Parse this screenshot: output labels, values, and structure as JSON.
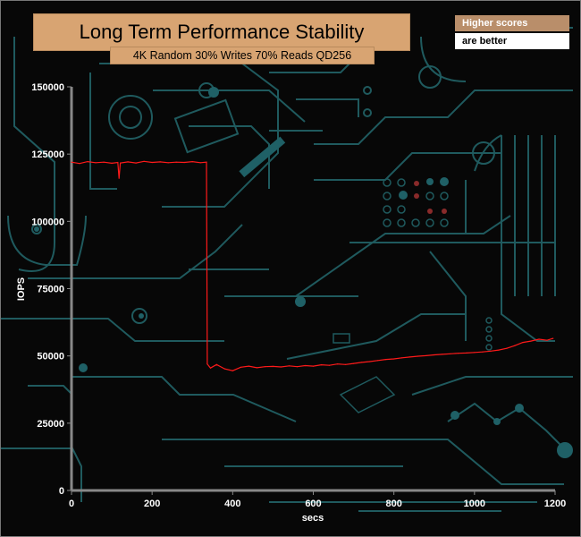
{
  "chart_data": {
    "type": "line",
    "title": "Long Term Performance Stability",
    "subtitle": "4K Random 30% Writes 70% Reads QD256",
    "xlabel": "secs",
    "ylabel": "IOPS",
    "xlim": [
      0,
      1200
    ],
    "ylim": [
      0,
      150000
    ],
    "x_ticks": [
      "0",
      "200",
      "400",
      "600",
      "800",
      "1000",
      "1200"
    ],
    "y_ticks": [
      "0",
      "25000",
      "50000",
      "75000",
      "100000",
      "125000",
      "150000"
    ],
    "grid": false,
    "series": [
      {
        "color": "#ff1a1a",
        "points": [
          [
            0,
            122000
          ],
          [
            20,
            121500
          ],
          [
            40,
            122200
          ],
          [
            60,
            121800
          ],
          [
            80,
            122000
          ],
          [
            100,
            121600
          ],
          [
            115,
            121900
          ],
          [
            118,
            116000
          ],
          [
            121,
            121700
          ],
          [
            140,
            122100
          ],
          [
            160,
            121700
          ],
          [
            180,
            122300
          ],
          [
            200,
            121900
          ],
          [
            220,
            122100
          ],
          [
            240,
            121800
          ],
          [
            260,
            122000
          ],
          [
            280,
            121900
          ],
          [
            300,
            122200
          ],
          [
            320,
            121800
          ],
          [
            335,
            122000
          ],
          [
            337,
            47000
          ],
          [
            345,
            45500
          ],
          [
            360,
            46800
          ],
          [
            380,
            45200
          ],
          [
            400,
            44500
          ],
          [
            420,
            45800
          ],
          [
            440,
            46200
          ],
          [
            460,
            45600
          ],
          [
            480,
            46000
          ],
          [
            500,
            46100
          ],
          [
            520,
            45900
          ],
          [
            540,
            46300
          ],
          [
            560,
            46000
          ],
          [
            580,
            46400
          ],
          [
            600,
            46200
          ],
          [
            620,
            46700
          ],
          [
            640,
            46500
          ],
          [
            660,
            47000
          ],
          [
            680,
            46800
          ],
          [
            700,
            47200
          ],
          [
            720,
            47600
          ],
          [
            740,
            47900
          ],
          [
            760,
            48300
          ],
          [
            780,
            48700
          ],
          [
            800,
            48900
          ],
          [
            820,
            49300
          ],
          [
            840,
            49600
          ],
          [
            860,
            49900
          ],
          [
            880,
            50100
          ],
          [
            900,
            50400
          ],
          [
            920,
            50600
          ],
          [
            940,
            50800
          ],
          [
            960,
            51000
          ],
          [
            980,
            51100
          ],
          [
            1000,
            51300
          ],
          [
            1020,
            51500
          ],
          [
            1040,
            51800
          ],
          [
            1060,
            52200
          ],
          [
            1080,
            52800
          ],
          [
            1100,
            53800
          ],
          [
            1120,
            55000
          ],
          [
            1140,
            55500
          ],
          [
            1160,
            56200
          ],
          [
            1180,
            55800
          ],
          [
            1195,
            56500
          ]
        ]
      }
    ]
  },
  "legend_note": {
    "line1": "Higher scores",
    "line2": "are better"
  }
}
